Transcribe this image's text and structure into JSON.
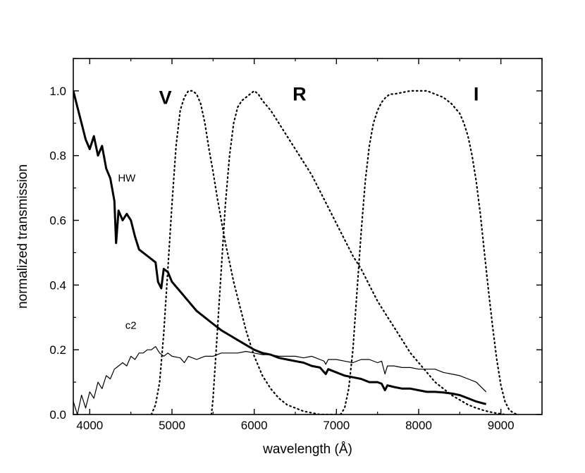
{
  "chart_data": {
    "type": "line",
    "title": "",
    "xlabel": "wavelength (Å)",
    "ylabel": "normalized transmission",
    "xlim": [
      3800,
      9500
    ],
    "ylim": [
      0.0,
      1.1
    ],
    "xticks": [
      4000,
      5000,
      6000,
      7000,
      8000,
      9000
    ],
    "xtick_labels": [
      "4000",
      "5000",
      "6000",
      "7000",
      "8000",
      "9000"
    ],
    "yticks": [
      0.0,
      0.2,
      0.4,
      0.6,
      0.8,
      1.0
    ],
    "ytick_labels": [
      "0.0",
      "0.2",
      "0.4",
      "0.6",
      "0.8",
      "1.0"
    ],
    "series": [
      {
        "name": "HW",
        "style": "solid-thick",
        "label_at": {
          "x": 4450,
          "y": 0.72
        },
        "x": [
          3800,
          3850,
          3900,
          3950,
          4000,
          4050,
          4100,
          4150,
          4200,
          4250,
          4300,
          4320,
          4350,
          4400,
          4450,
          4500,
          4550,
          4600,
          4700,
          4800,
          4830,
          4870,
          4900,
          4950,
          5000,
          5100,
          5200,
          5300,
          5400,
          5500,
          5600,
          5700,
          5800,
          5900,
          6000,
          6100,
          6200,
          6300,
          6400,
          6500,
          6600,
          6700,
          6800,
          6870,
          6900,
          7000,
          7100,
          7200,
          7300,
          7400,
          7500,
          7550,
          7590,
          7620,
          7700,
          7800,
          7900,
          8000,
          8100,
          8200,
          8300,
          8400,
          8500,
          8600,
          8700,
          8820
        ],
        "y": [
          1.0,
          0.95,
          0.9,
          0.85,
          0.82,
          0.86,
          0.8,
          0.83,
          0.76,
          0.73,
          0.66,
          0.53,
          0.63,
          0.6,
          0.62,
          0.6,
          0.55,
          0.51,
          0.49,
          0.47,
          0.41,
          0.39,
          0.45,
          0.44,
          0.41,
          0.38,
          0.35,
          0.32,
          0.3,
          0.28,
          0.26,
          0.245,
          0.23,
          0.215,
          0.2,
          0.19,
          0.185,
          0.175,
          0.17,
          0.165,
          0.16,
          0.15,
          0.145,
          0.125,
          0.14,
          0.13,
          0.12,
          0.115,
          0.11,
          0.1,
          0.1,
          0.095,
          0.075,
          0.09,
          0.085,
          0.08,
          0.08,
          0.075,
          0.07,
          0.07,
          0.068,
          0.065,
          0.06,
          0.05,
          0.04,
          0.032
        ]
      },
      {
        "name": "c2",
        "style": "solid-thin",
        "label_at": {
          "x": 4500,
          "y": 0.265
        },
        "x": [
          3800,
          3850,
          3900,
          3950,
          4000,
          4050,
          4100,
          4150,
          4200,
          4250,
          4300,
          4350,
          4400,
          4450,
          4500,
          4550,
          4600,
          4650,
          4700,
          4750,
          4800,
          4850,
          4900,
          4950,
          5000,
          5100,
          5150,
          5200,
          5300,
          5400,
          5500,
          5600,
          5700,
          5800,
          5900,
          6000,
          6100,
          6200,
          6300,
          6400,
          6500,
          6600,
          6700,
          6800,
          6850,
          6870,
          6900,
          7000,
          7100,
          7200,
          7300,
          7400,
          7500,
          7550,
          7590,
          7620,
          7700,
          7800,
          7900,
          8000,
          8100,
          8200,
          8300,
          8400,
          8500,
          8600,
          8700,
          8820
        ],
        "y": [
          0.04,
          0.0,
          0.06,
          0.02,
          0.07,
          0.05,
          0.1,
          0.08,
          0.12,
          0.11,
          0.14,
          0.15,
          0.16,
          0.15,
          0.18,
          0.17,
          0.19,
          0.19,
          0.2,
          0.2,
          0.21,
          0.19,
          0.18,
          0.19,
          0.18,
          0.175,
          0.16,
          0.18,
          0.17,
          0.18,
          0.18,
          0.19,
          0.19,
          0.19,
          0.195,
          0.19,
          0.185,
          0.185,
          0.18,
          0.18,
          0.18,
          0.175,
          0.18,
          0.17,
          0.165,
          0.155,
          0.17,
          0.17,
          0.165,
          0.16,
          0.17,
          0.17,
          0.16,
          0.165,
          0.125,
          0.15,
          0.15,
          0.145,
          0.145,
          0.14,
          0.14,
          0.14,
          0.13,
          0.125,
          0.12,
          0.11,
          0.1,
          0.07
        ]
      },
      {
        "name": "V",
        "style": "dotted",
        "label_at": {
          "x": 4920,
          "y": 0.96
        },
        "x": [
          4750,
          4800,
          4850,
          4900,
          4950,
          5000,
          5050,
          5100,
          5150,
          5200,
          5250,
          5300,
          5350,
          5400,
          5450,
          5500,
          5550,
          5600,
          5650,
          5700,
          5750,
          5800,
          5850,
          5900,
          5950,
          6000,
          6050,
          6100,
          6150,
          6200,
          6300,
          6400,
          6500,
          6600,
          6700,
          6800,
          6900,
          7000
        ],
        "y": [
          0.0,
          0.03,
          0.1,
          0.25,
          0.45,
          0.65,
          0.83,
          0.94,
          0.98,
          1.0,
          1.0,
          0.99,
          0.96,
          0.9,
          0.82,
          0.75,
          0.67,
          0.6,
          0.53,
          0.47,
          0.41,
          0.36,
          0.31,
          0.26,
          0.22,
          0.18,
          0.15,
          0.12,
          0.1,
          0.08,
          0.05,
          0.03,
          0.02,
          0.01,
          0.005,
          0.0,
          0.0,
          0.0
        ]
      },
      {
        "name": "R",
        "style": "dotted",
        "label_at": {
          "x": 6550,
          "y": 0.97
        },
        "x": [
          5480,
          5500,
          5550,
          5600,
          5650,
          5700,
          5750,
          5800,
          5850,
          5900,
          5950,
          6000,
          6050,
          6100,
          6200,
          6300,
          6400,
          6500,
          6600,
          6700,
          6800,
          6900,
          7000,
          7100,
          7200,
          7300,
          7400,
          7500,
          7600,
          7700,
          7800,
          7900,
          8000,
          8100,
          8200,
          8300,
          8400,
          8500,
          8600,
          8700,
          8800,
          8900,
          9000,
          9050
        ],
        "y": [
          0.0,
          0.05,
          0.25,
          0.45,
          0.65,
          0.8,
          0.9,
          0.95,
          0.97,
          0.98,
          0.99,
          1.0,
          0.99,
          0.97,
          0.94,
          0.9,
          0.86,
          0.82,
          0.78,
          0.74,
          0.69,
          0.64,
          0.59,
          0.54,
          0.49,
          0.45,
          0.4,
          0.35,
          0.31,
          0.27,
          0.23,
          0.19,
          0.16,
          0.13,
          0.1,
          0.08,
          0.06,
          0.045,
          0.03,
          0.02,
          0.012,
          0.006,
          0.002,
          0.0
        ]
      },
      {
        "name": "I",
        "style": "dotted",
        "label_at": {
          "x": 8700,
          "y": 0.97
        },
        "x": [
          7050,
          7100,
          7150,
          7200,
          7250,
          7300,
          7350,
          7400,
          7450,
          7500,
          7550,
          7600,
          7650,
          7700,
          7800,
          7900,
          8000,
          8100,
          8200,
          8300,
          8400,
          8500,
          8550,
          8600,
          8650,
          8700,
          8750,
          8800,
          8850,
          8900,
          8950,
          9000,
          9050,
          9100,
          9150,
          9200
        ],
        "y": [
          0.0,
          0.02,
          0.08,
          0.2,
          0.38,
          0.56,
          0.72,
          0.83,
          0.9,
          0.94,
          0.965,
          0.98,
          0.99,
          0.99,
          0.995,
          1.0,
          1.0,
          1.0,
          0.99,
          0.98,
          0.96,
          0.93,
          0.9,
          0.86,
          0.8,
          0.72,
          0.62,
          0.5,
          0.38,
          0.27,
          0.17,
          0.09,
          0.04,
          0.015,
          0.005,
          0.0
        ]
      }
    ]
  }
}
